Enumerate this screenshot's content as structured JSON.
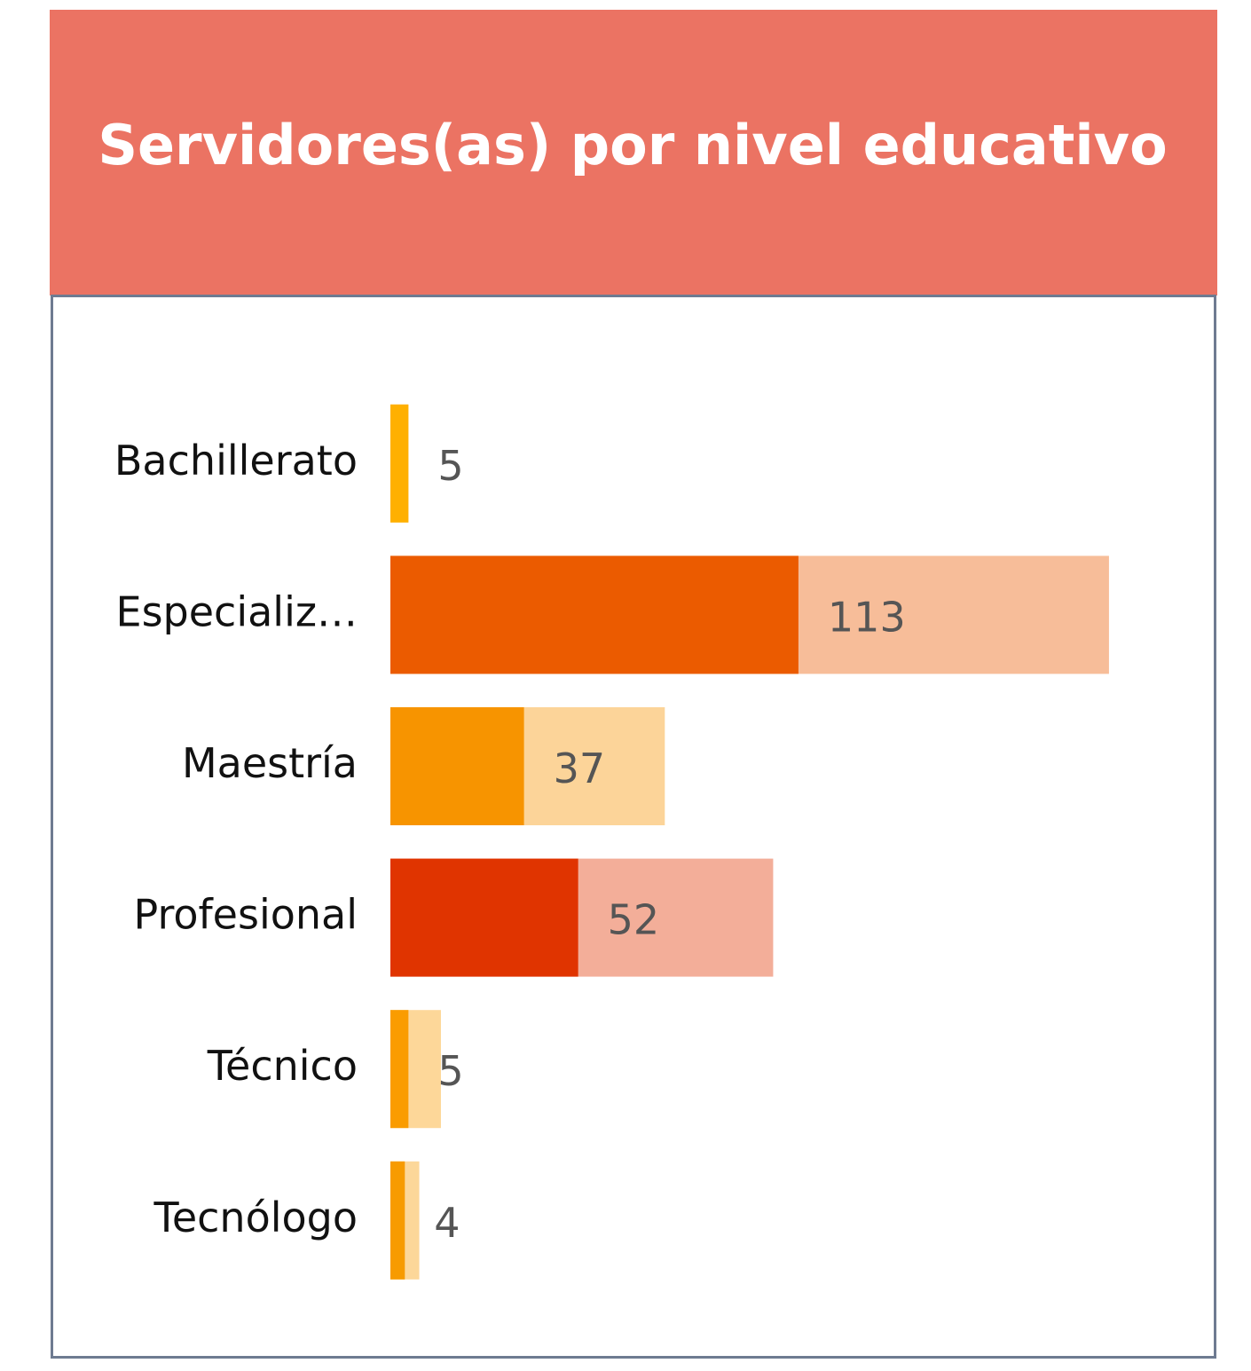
{
  "chart_data": {
    "type": "bar",
    "orientation": "horizontal",
    "title": "Servidores(as) por nivel educativo",
    "categories": [
      "Bachillerato",
      "Especializ…",
      "Maestría",
      "Profesional",
      "Técnico",
      "Tecnólogo"
    ],
    "values": [
      5,
      113,
      37,
      52,
      5,
      4
    ],
    "background_values": [
      5,
      199,
      76,
      106,
      14,
      8
    ],
    "colors": [
      "#FFB000",
      "#EB5B00",
      "#F79400",
      "#E03400",
      "#FA9C00",
      "#F79B00"
    ],
    "xlim": [
      0,
      200
    ]
  }
}
